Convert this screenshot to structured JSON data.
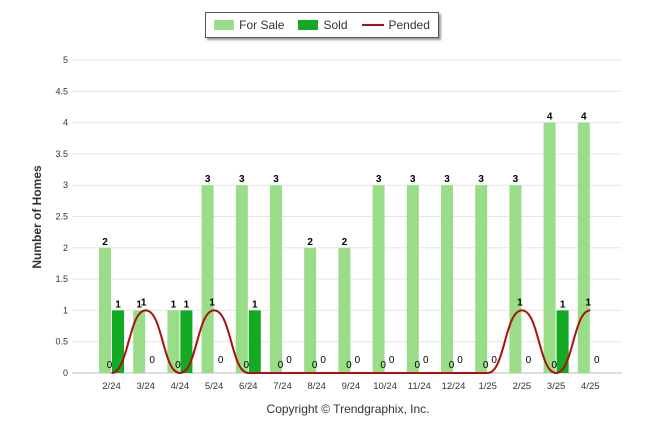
{
  "chart_data": {
    "type": "bar",
    "title": "",
    "ylabel": "Number of Homes",
    "xlabel": "",
    "ylim": [
      0,
      5
    ],
    "ytick_step": 0.5,
    "grid": true,
    "legend_position": "top-center",
    "categories": [
      "2/24",
      "3/24",
      "4/24",
      "5/24",
      "6/24",
      "7/24",
      "8/24",
      "9/24",
      "10/24",
      "11/24",
      "12/24",
      "1/25",
      "2/25",
      "3/25",
      "4/25"
    ],
    "series": [
      {
        "name": "For Sale",
        "type": "bar",
        "color": "#99dd88",
        "values": [
          2,
          1,
          1,
          3,
          3,
          3,
          2,
          2,
          3,
          3,
          3,
          3,
          3,
          4,
          4
        ]
      },
      {
        "name": "Sold",
        "type": "bar",
        "color": "#11aa22",
        "values": [
          1,
          0,
          1,
          0,
          1,
          0,
          0,
          0,
          0,
          0,
          0,
          0,
          0,
          1,
          0
        ]
      },
      {
        "name": "Pended",
        "type": "line",
        "color": "#aa1111",
        "values": [
          0,
          1,
          0,
          1,
          0,
          0,
          0,
          0,
          0,
          0,
          0,
          0,
          1,
          0,
          1
        ]
      }
    ]
  },
  "footer": {
    "copyright": "Copyright © Trendgraphix, Inc."
  }
}
